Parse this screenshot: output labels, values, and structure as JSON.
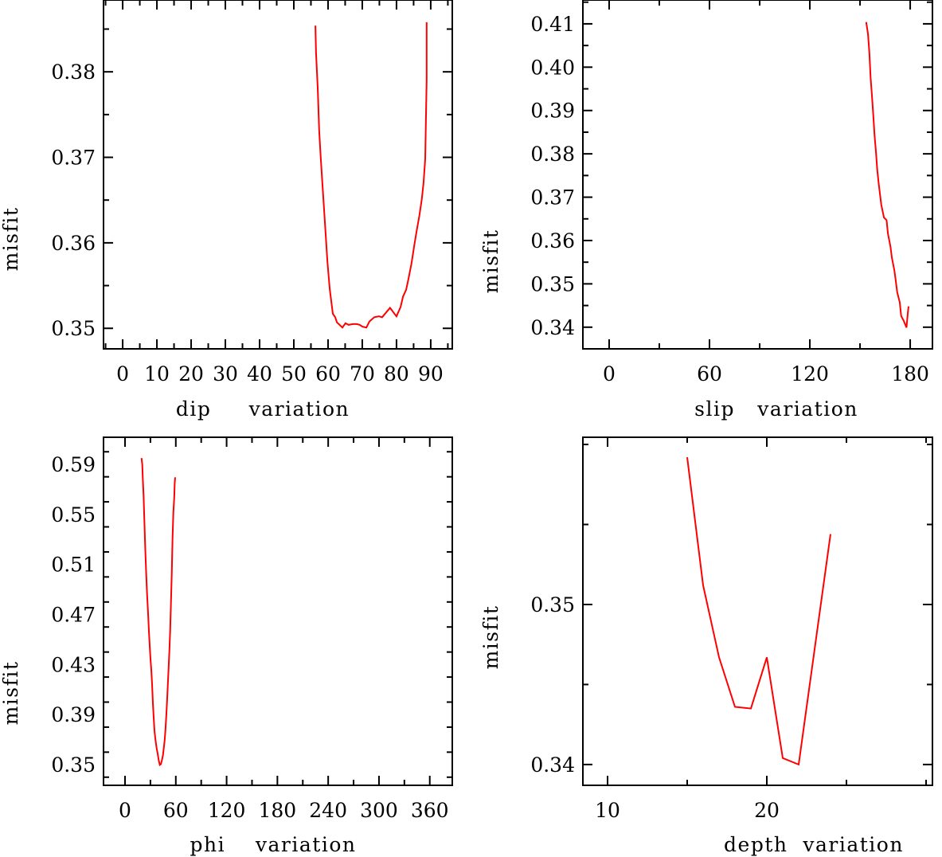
{
  "chart_data": [
    {
      "type": "line",
      "xlabel": "dip     variation",
      "ylabel": "misfit",
      "xlim": [
        -5.6,
        96.3
      ],
      "ylim": [
        0.3476,
        0.3884
      ],
      "xticks": [
        0,
        10,
        20,
        30,
        40,
        50,
        60,
        70,
        80,
        90
      ],
      "xtick_labels": [
        "0",
        "10",
        "20",
        "30",
        "40",
        "50",
        "60",
        "70",
        "80",
        "90"
      ],
      "xminor": 5,
      "yticks": [
        0.35,
        0.36,
        0.37,
        0.38
      ],
      "ytick_labels": [
        "0.35",
        "0.36",
        "0.37",
        "0.38"
      ],
      "yminor": 0.005,
      "color": "#ff0000",
      "x": [
        56.3,
        56.5,
        57.0,
        57.4,
        57.9,
        58.4,
        59.1,
        59.8,
        60.5,
        61.4,
        62.1,
        62.6,
        64.2,
        65.1,
        66.0,
        67.2,
        68.4,
        69.3,
        70.0,
        71.2,
        72.1,
        73.5,
        74.9,
        75.8,
        78.1,
        80.0,
        81.2,
        81.9,
        82.8,
        83.5,
        84.4,
        85.1,
        85.8,
        86.7,
        87.4,
        87.9,
        88.4,
        88.6,
        88.8,
        88.8,
        88.8
      ],
      "y": [
        0.3854,
        0.3822,
        0.3779,
        0.3732,
        0.3698,
        0.3666,
        0.3623,
        0.3579,
        0.3546,
        0.3517,
        0.3513,
        0.3507,
        0.3501,
        0.3506,
        0.3504,
        0.3505,
        0.3505,
        0.3504,
        0.3502,
        0.3501,
        0.3508,
        0.3513,
        0.3514,
        0.3513,
        0.3524,
        0.3514,
        0.3525,
        0.3537,
        0.3545,
        0.3558,
        0.3576,
        0.3595,
        0.3612,
        0.3632,
        0.3651,
        0.367,
        0.3698,
        0.3744,
        0.3791,
        0.3837,
        0.3858
      ]
    },
    {
      "type": "line",
      "xlabel": "slip   variation",
      "ylabel": "misfit",
      "xlim": [
        -15.7,
        193.3
      ],
      "ylim": [
        0.335,
        0.4155
      ],
      "xticks": [
        0,
        60,
        120,
        180
      ],
      "xtick_labels": [
        "0",
        "60",
        "120",
        "180"
      ],
      "xminor": 30,
      "yticks": [
        0.34,
        0.35,
        0.36,
        0.37,
        0.38,
        0.39,
        0.4,
        0.41
      ],
      "ytick_labels": [
        "0.34",
        "0.35",
        "0.36",
        "0.37",
        "0.38",
        "0.39",
        "0.40",
        "0.41"
      ],
      "yminor": 0.005,
      "color": "#ff0000",
      "x": [
        153.7,
        154.8,
        155.6,
        156.3,
        157.1,
        157.9,
        158.7,
        159.5,
        160.3,
        161.1,
        162.7,
        164.3,
        165.9,
        166.7,
        168.2,
        169.0,
        170.6,
        171.4,
        172.2,
        173.8,
        174.6,
        176.2,
        177.8,
        178.6,
        179.0
      ],
      "y": [
        0.4104,
        0.4076,
        0.4033,
        0.3977,
        0.3935,
        0.3892,
        0.3843,
        0.3806,
        0.3763,
        0.3733,
        0.3683,
        0.3653,
        0.3647,
        0.3616,
        0.3586,
        0.3561,
        0.353,
        0.3506,
        0.3481,
        0.3457,
        0.3426,
        0.3414,
        0.3399,
        0.3433,
        0.3448
      ]
    },
    {
      "type": "line",
      "xlabel": "phi    variation",
      "ylabel": "misfit",
      "xlim": [
        -25.4,
        386.6
      ],
      "ylim": [
        0.3335,
        0.6116
      ],
      "xticks": [
        0,
        60,
        120,
        180,
        240,
        300,
        360
      ],
      "xtick_labels": [
        "0",
        "60",
        "120",
        "180",
        "240",
        "300",
        "360"
      ],
      "xminor": 30,
      "yticks": [
        0.35,
        0.39,
        0.43,
        0.47,
        0.51,
        0.55,
        0.59
      ],
      "ytick_labels": [
        "0.35",
        "0.39",
        "0.43",
        "0.47",
        "0.51",
        "0.55",
        "0.59"
      ],
      "yminor": 0.02,
      "color": "#ff0000",
      "x": [
        19.5,
        20.4,
        21.0,
        21.9,
        22.9,
        23.8,
        24.8,
        26.0,
        27.3,
        28.2,
        29.2,
        30.1,
        31.0,
        32.0,
        32.9,
        33.9,
        34.8,
        36.0,
        37.3,
        38.6,
        39.8,
        41.1,
        42.3,
        43.6,
        44.9,
        45.8,
        46.8,
        47.7,
        48.6,
        49.6,
        50.5,
        51.5,
        52.4,
        53.3,
        54.3,
        55.2,
        56.2,
        57.1,
        58.1,
        58.7,
        59.3
      ],
      "y": [
        0.595,
        0.5898,
        0.579,
        0.5653,
        0.5451,
        0.5249,
        0.5057,
        0.4876,
        0.4706,
        0.4568,
        0.4451,
        0.4344,
        0.4259,
        0.4143,
        0.3993,
        0.3877,
        0.377,
        0.3696,
        0.3632,
        0.3589,
        0.3536,
        0.3498,
        0.3504,
        0.3536,
        0.3578,
        0.3632,
        0.3696,
        0.377,
        0.3877,
        0.3993,
        0.4132,
        0.428,
        0.4408,
        0.4568,
        0.4791,
        0.5025,
        0.5312,
        0.5515,
        0.5631,
        0.5748,
        0.5796
      ]
    },
    {
      "type": "line",
      "xlabel": "depth  variation",
      "ylabel": "misfit",
      "xlim": [
        8.45,
        30.4
      ],
      "ylim": [
        0.3387,
        0.36045
      ],
      "xticks": [
        10,
        20
      ],
      "xtick_labels": [
        "10",
        "20"
      ],
      "xminor": 5,
      "yticks": [
        0.34,
        0.35
      ],
      "ytick_labels": [
        "0.34",
        "0.35"
      ],
      "yminor": 0.005,
      "color": "#ff0000",
      "x": [
        15,
        16,
        17,
        18,
        19,
        20,
        21,
        22,
        24
      ],
      "y": [
        0.3592,
        0.3512,
        0.3467,
        0.3436,
        0.3435,
        0.3467,
        0.3404,
        0.34,
        0.3544
      ]
    }
  ]
}
